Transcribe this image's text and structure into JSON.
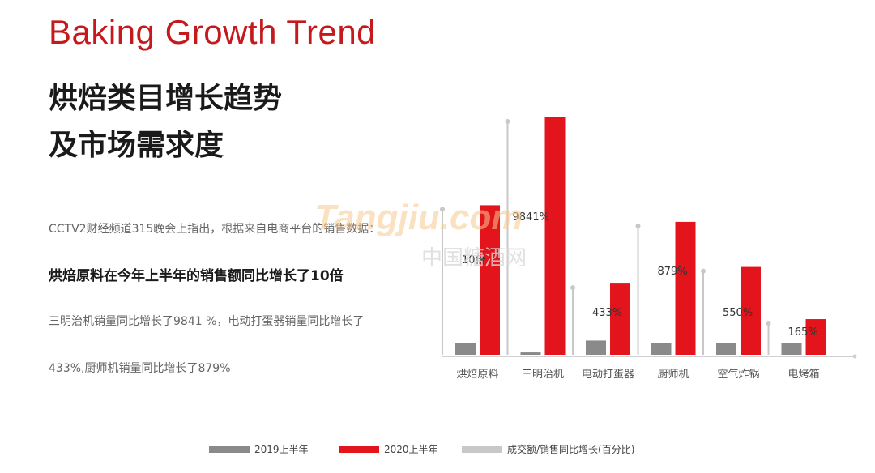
{
  "header": {
    "title_en": "Baking Growth Trend",
    "title_cn_line1": "烘焙类目增长趋势",
    "title_cn_line2": "及市场需求度"
  },
  "body_text": {
    "p1": "CCTV2财经频道315晚会上指出，根据来自电商平台的销售数据：",
    "p2": "烘焙原料在今年上半年的销售额同比增长了10倍",
    "p3": "三明治机销量同比增长了9841 %，电动打蛋器销量同比增长了",
    "p4": "433%,厨师机销量同比增长了879%"
  },
  "watermark": {
    "brand": "Tangjiu.com",
    "cn": "中国糖酒网"
  },
  "chart_data": {
    "type": "bar",
    "categories": [
      "烘焙原料",
      "三明治机",
      "电动打蛋器",
      "厨师机",
      "空气炸锅",
      "电烤箱"
    ],
    "series": [
      {
        "name": "2019上半年",
        "color": "#8a8a8a",
        "values": [
          5,
          1,
          6,
          5,
          5,
          5
        ]
      },
      {
        "name": "2020上半年",
        "color": "#e3141b",
        "values": [
          63,
          100,
          30,
          56,
          37,
          15
        ]
      },
      {
        "name": "成交额/销售同比增长(百分比)",
        "color": "#c8c8c8"
      }
    ],
    "growth_labels": [
      "10倍",
      "9841%",
      "433%",
      "879%",
      "550%",
      "165%"
    ],
    "ylim": [
      0,
      100
    ],
    "legend_position": "bottom"
  }
}
